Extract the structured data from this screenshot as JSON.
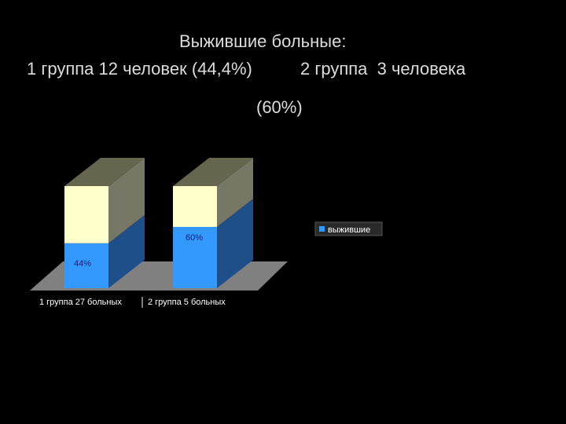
{
  "header": {
    "line1": "Выжившие больные:",
    "line2": "1 группа 12 человек (44,4%)          2 группа  3 человека",
    "line3": "(60%)"
  },
  "chart_data": {
    "type": "bar",
    "stacked": true,
    "categories": [
      "1 группа 27 больных",
      "2 группа 5 больных"
    ],
    "series": [
      {
        "name": "выжившие",
        "values": [
          44,
          60
        ],
        "color": "#3399ff",
        "labels": [
          "44%",
          "60%"
        ]
      },
      {
        "values": [
          56,
          40
        ],
        "color": "#ffffcc"
      }
    ],
    "legend": {
      "entries": [
        "выжившие"
      ],
      "placement": "right"
    },
    "ylim": [
      0,
      100
    ],
    "grid": false,
    "colors": {
      "floor": "#808080",
      "side_top": "#777766",
      "side_low": "#1f4f88",
      "top_face": "#66664f"
    }
  }
}
